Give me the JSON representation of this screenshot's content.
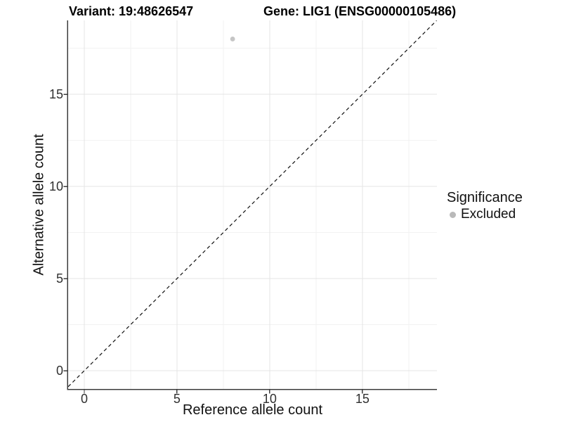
{
  "chart_data": {
    "type": "scatter",
    "titles": {
      "left": "Variant: 19:48626547",
      "right": "Gene: LIG1 (ENSG00000105486)"
    },
    "xlabel": "Reference allele count",
    "ylabel": "Alternative allele count",
    "xlim": [
      -0.87,
      19.02
    ],
    "ylim": [
      -0.99,
      19.01
    ],
    "x_major_ticks": [
      0,
      5,
      10,
      15
    ],
    "x_minor_ticks": [
      2.5,
      7.5,
      12.5,
      17.5
    ],
    "y_major_ticks": [
      0,
      5,
      10,
      15
    ],
    "y_minor_ticks": [
      2.5,
      7.5,
      12.5,
      17.5
    ],
    "grid": true,
    "series": [
      {
        "name": "Excluded",
        "color": "#c5c5c5",
        "points": [
          {
            "x": 8,
            "y": 18
          }
        ]
      }
    ],
    "identity_line": {
      "style": "dashed",
      "color": "#111111",
      "from": {
        "x": -0.87,
        "y": -0.87
      },
      "to": {
        "x": 19.0,
        "y": 19.0
      }
    },
    "legend": {
      "title": "Significance",
      "position": "right",
      "entries": [
        {
          "label": "Excluded",
          "color": "#b9b9b9"
        }
      ]
    },
    "colors": {
      "background": "#ffffff",
      "grid_major": "#e4e4e4",
      "grid_minor": "#f2f2f2",
      "axis_line": "#3c3c3c",
      "tick_text": "#303030",
      "title_text": "#000000"
    }
  }
}
